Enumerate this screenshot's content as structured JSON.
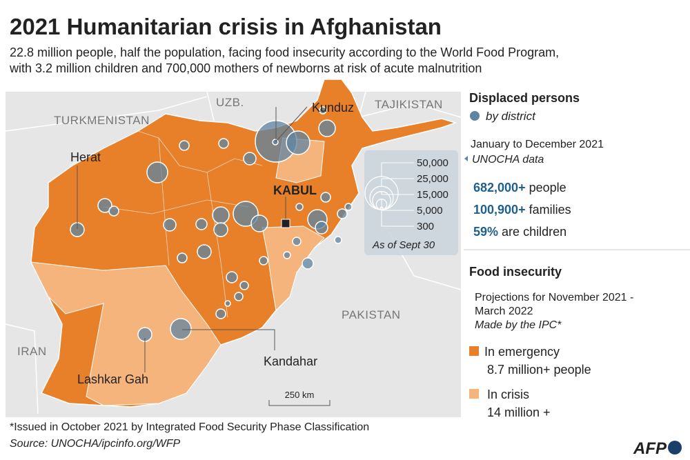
{
  "header": {
    "title": "2021 Humanitarian crisis in Afghanistan",
    "subtitle": [
      "22.8 million people, half the population, facing food insecurity according to the World Food Program,",
      "with 3.2 million children and 700,000 mothers of newborns at risk of acute malnutrition"
    ]
  },
  "map": {
    "countries": [
      "TURKMENISTAN",
      "UZB.",
      "TAJIKISTAN",
      "IRAN",
      "PAKISTAN"
    ],
    "cities": [
      "Herat",
      "Kunduz",
      "KABUL",
      "Kandahar",
      "Lashkar Gah"
    ],
    "scale": "250 km",
    "size_legend": {
      "ticks": [
        {
          "value": 50000,
          "label": "50,000"
        },
        {
          "value": 25000,
          "label": "25,000"
        },
        {
          "value": 15000,
          "label": "15,000"
        },
        {
          "value": 5000,
          "label": "5,000"
        },
        300
      ],
      "note": "As of Sept 30"
    }
  },
  "sidebar": {
    "displaced": {
      "title": "Displaced persons",
      "subtitle": "by district",
      "period": "January to December 2021",
      "source": "UNOCHA data",
      "stats": [
        {
          "value": "682,000+",
          "text": "people"
        },
        {
          "value": "100,900+",
          "text": "families"
        },
        {
          "value": "59%",
          "text": "are children"
        }
      ]
    },
    "food": {
      "title": "Food insecurity",
      "projection": [
        "Projections for November 2021 -",
        "March 2022"
      ],
      "credit": "Made by the IPC*",
      "legend": [
        {
          "label": "In emergency",
          "detail": "8.7 million+ people",
          "color": "#e8802a"
        },
        {
          "label": "In crisis",
          "detail": "14 million +",
          "color": "#f5b47c"
        }
      ]
    }
  },
  "footer": {
    "note": "*Issued in October 2021 by Integrated Food Security Phase Classification",
    "source": "Source: UNOCHA/ipcinfo.org/WFP",
    "logo": "AFP"
  }
}
